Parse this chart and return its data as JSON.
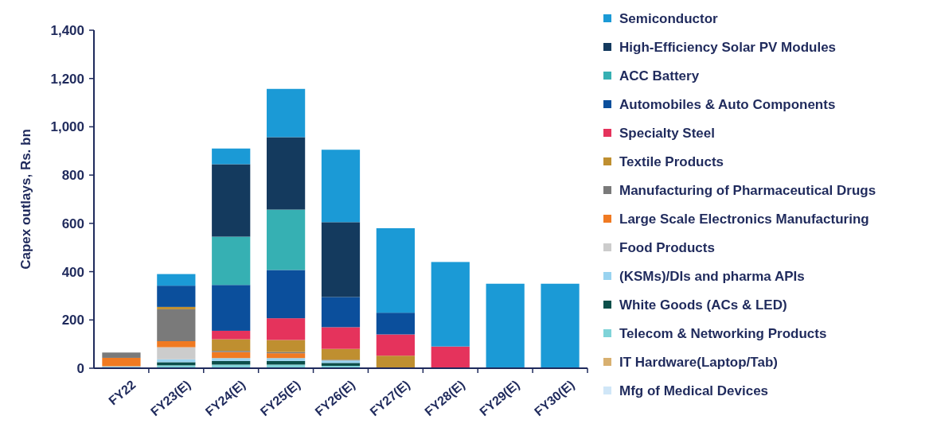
{
  "chart_data": {
    "type": "bar",
    "stacked": true,
    "ylabel": "Capex outlays, Rs. bn",
    "categories": [
      "FY22",
      "FY23(E)",
      "FY24(E)",
      "FY25(E)",
      "FY26(E)",
      "FY27(E)",
      "FY28(E)",
      "FY29(E)",
      "FY30(E)"
    ],
    "ylim": [
      0,
      1400
    ],
    "yticks": [
      0,
      {
        "value": 200,
        "label": "200"
      },
      {
        "value": 400,
        "label": "400"
      },
      {
        "value": 600,
        "label": "600"
      },
      {
        "value": 800,
        "label": "800"
      },
      {
        "value": 1000,
        "label": "1,000"
      },
      {
        "value": 1200,
        "label": "1,200"
      },
      {
        "value": 1400,
        "label": "1,400"
      }
    ],
    "grid": false,
    "legend": "right",
    "series": [
      {
        "name": "Mfg of Medical Devices",
        "color": "#d0e6f7",
        "values": [
          0,
          0,
          0,
          0,
          0,
          0,
          0,
          0,
          0
        ]
      },
      {
        "name": "IT Hardware(Laptop/Tab)",
        "color": "#d8b070",
        "values": [
          0,
          0,
          0,
          0,
          0,
          0,
          0,
          0,
          0
        ]
      },
      {
        "name": "Telecom & Networking Products",
        "color": "#7fd3d8",
        "values": [
          0,
          12,
          15,
          15,
          10,
          0,
          0,
          0,
          0
        ]
      },
      {
        "name": "White Goods (ACs & LED)",
        "color": "#0c4f4a",
        "values": [
          0,
          13,
          15,
          15,
          12,
          0,
          0,
          0,
          0
        ]
      },
      {
        "name": "(KSMs)/DIs and pharma APIs",
        "color": "#99d3f0",
        "values": [
          8,
          12,
          12,
          12,
          10,
          0,
          0,
          0,
          0
        ]
      },
      {
        "name": "Food Products",
        "color": "#cccccc",
        "values": [
          0,
          50,
          0,
          0,
          0,
          0,
          0,
          0,
          0
        ]
      },
      {
        "name": "Large Scale Electronics Manufacturing",
        "color": "#f07a22",
        "values": [
          35,
          25,
          25,
          20,
          0,
          0,
          0,
          0,
          0
        ]
      },
      {
        "name": "Manufacturing of Pharmaceutical Drugs",
        "color": "#7a7a7a",
        "values": [
          22,
          132,
          5,
          5,
          3,
          0,
          0,
          0,
          0
        ]
      },
      {
        "name": "Textile Products",
        "color": "#bf8f30",
        "values": [
          0,
          10,
          48,
          50,
          45,
          52,
          0,
          0,
          0
        ]
      },
      {
        "name": "Specialty Steel",
        "color": "#e5335c",
        "values": [
          0,
          0,
          35,
          90,
          90,
          88,
          90,
          0,
          0
        ]
      },
      {
        "name": "Automobiles & Auto Components",
        "color": "#0b4f9c",
        "values": [
          0,
          88,
          190,
          200,
          125,
          90,
          0,
          0,
          0
        ]
      },
      {
        "name": "ACC Battery",
        "color": "#36b0b3",
        "values": [
          0,
          0,
          200,
          250,
          0,
          0,
          0,
          0,
          0
        ]
      },
      {
        "name": "High-Efficiency Solar PV Modules",
        "color": "#143a5e",
        "values": [
          0,
          0,
          300,
          300,
          310,
          0,
          0,
          0,
          0
        ]
      },
      {
        "name": "Semiconductor",
        "color": "#1b9ad6",
        "values": [
          0,
          48,
          65,
          200,
          300,
          350,
          350,
          350,
          350
        ]
      }
    ]
  }
}
